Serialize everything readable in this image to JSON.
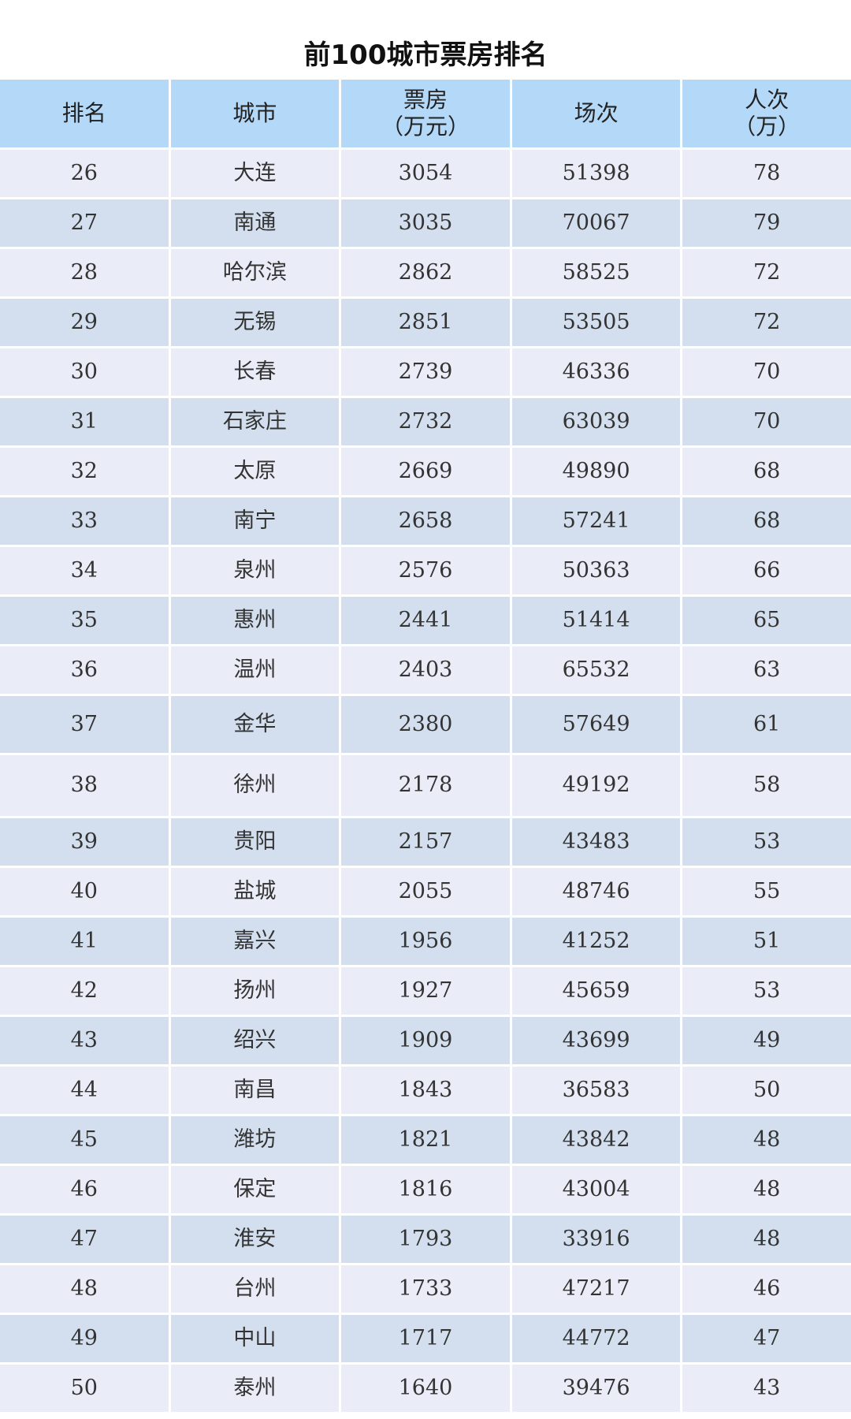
{
  "title": "前100城市票房排名",
  "colors": {
    "header_bg": "#b3d8f8",
    "row_light": "#eaedf7",
    "row_dark": "#d3dfee"
  },
  "columns": [
    "排名",
    "城市",
    "票房\n（万元）",
    "场次",
    "人次\n（万）"
  ],
  "rows": [
    [
      "26",
      "大连",
      "3054",
      "51398",
      "78"
    ],
    [
      "27",
      "南通",
      "3035",
      "70067",
      "79"
    ],
    [
      "28",
      "哈尔滨",
      "2862",
      "58525",
      "72"
    ],
    [
      "29",
      "无锡",
      "2851",
      "53505",
      "72"
    ],
    [
      "30",
      "长春",
      "2739",
      "46336",
      "70"
    ],
    [
      "31",
      "石家庄",
      "2732",
      "63039",
      "70"
    ],
    [
      "32",
      "太原",
      "2669",
      "49890",
      "68"
    ],
    [
      "33",
      "南宁",
      "2658",
      "57241",
      "68"
    ],
    [
      "34",
      "泉州",
      "2576",
      "50363",
      "66"
    ],
    [
      "35",
      "惠州",
      "2441",
      "51414",
      "65"
    ],
    [
      "36",
      "温州",
      "2403",
      "65532",
      "63"
    ],
    [
      "37",
      "金华",
      "2380",
      "57649",
      "61"
    ],
    [
      "38",
      "徐州",
      "2178",
      "49192",
      "58"
    ],
    [
      "39",
      "贵阳",
      "2157",
      "43483",
      "53"
    ],
    [
      "40",
      "盐城",
      "2055",
      "48746",
      "55"
    ],
    [
      "41",
      "嘉兴",
      "1956",
      "41252",
      "51"
    ],
    [
      "42",
      "扬州",
      "1927",
      "45659",
      "53"
    ],
    [
      "43",
      "绍兴",
      "1909",
      "43699",
      "49"
    ],
    [
      "44",
      "南昌",
      "1843",
      "36583",
      "50"
    ],
    [
      "45",
      "潍坊",
      "1821",
      "43842",
      "48"
    ],
    [
      "46",
      "保定",
      "1816",
      "43004",
      "48"
    ],
    [
      "47",
      "淮安",
      "1793",
      "33916",
      "48"
    ],
    [
      "48",
      "台州",
      "1733",
      "47217",
      "46"
    ],
    [
      "49",
      "中山",
      "1717",
      "44772",
      "47"
    ],
    [
      "50",
      "泰州",
      "1640",
      "39476",
      "43"
    ]
  ]
}
